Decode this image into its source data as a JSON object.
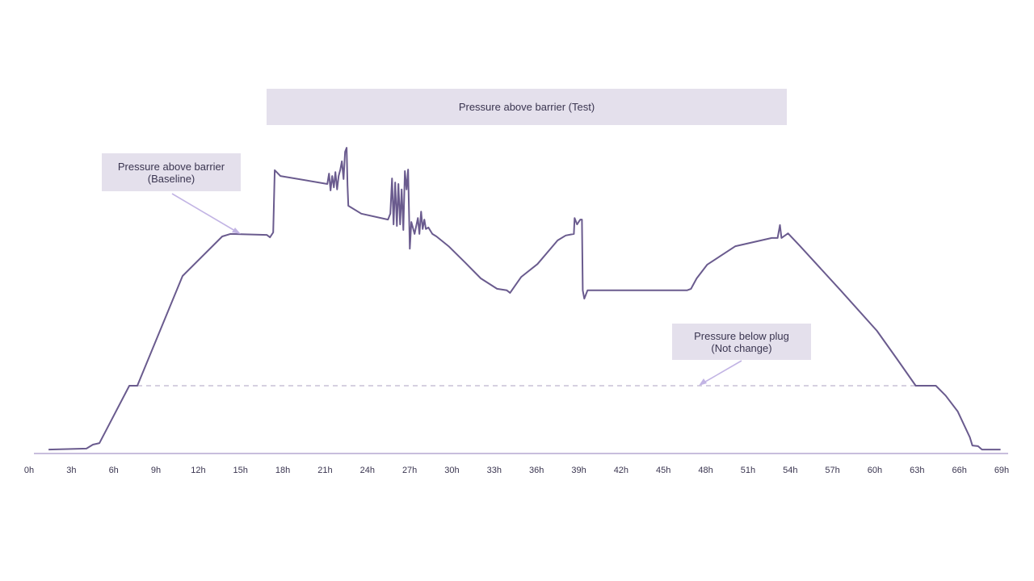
{
  "chart_data": {
    "type": "line",
    "title": "",
    "xlabel": "",
    "ylabel": "",
    "x_unit": "hours",
    "y_unit": "relative pressure (unlabeled, 0-100)",
    "xlim": [
      0,
      69
    ],
    "ylim": [
      0,
      100
    ],
    "grid": false,
    "x_ticks": [
      "0h",
      "3h",
      "6h",
      "9h",
      "12h",
      "15h",
      "18h",
      "21h",
      "24h",
      "27h",
      "30h",
      "33h",
      "36h",
      "39h",
      "42h",
      "45h",
      "48h",
      "51h",
      "54h",
      "57h",
      "60h",
      "63h",
      "66h",
      "69h"
    ],
    "x_tick_values": [
      0,
      3,
      6,
      9,
      12,
      15,
      18,
      21,
      24,
      27,
      30,
      33,
      36,
      39,
      42,
      45,
      48,
      51,
      54,
      57,
      60,
      63,
      66,
      69
    ],
    "series": [
      {
        "name": "Pressure above barrier",
        "color": "#6a5b8e",
        "points": [
          [
            1.38,
            1.3
          ],
          [
            4.07,
            1.6
          ],
          [
            4.53,
            2.9
          ],
          [
            4.99,
            3.4
          ],
          [
            7.11,
            22.1
          ],
          [
            7.68,
            22.1
          ],
          [
            10.89,
            57.9
          ],
          [
            13.7,
            70.8
          ],
          [
            14.28,
            71.6
          ],
          [
            16.86,
            71.3
          ],
          [
            17.09,
            70.5
          ],
          [
            17.32,
            72.1
          ],
          [
            17.43,
            92.4
          ],
          [
            17.83,
            90.5
          ],
          [
            21.16,
            87.9
          ],
          [
            21.28,
            91.3
          ],
          [
            21.39,
            85.8
          ],
          [
            21.5,
            90.5
          ],
          [
            21.62,
            86.8
          ],
          [
            21.73,
            91.8
          ],
          [
            21.85,
            86.1
          ],
          [
            21.96,
            90.5
          ],
          [
            22.08,
            92.6
          ],
          [
            22.19,
            95.3
          ],
          [
            22.31,
            89.5
          ],
          [
            22.42,
            98.4
          ],
          [
            22.53,
            99.7
          ],
          [
            22.59,
            87.4
          ],
          [
            22.65,
            80.8
          ],
          [
            23.57,
            78.2
          ],
          [
            25.46,
            76.3
          ],
          [
            25.63,
            78.2
          ],
          [
            25.75,
            89.7
          ],
          [
            25.86,
            74.7
          ],
          [
            25.97,
            88.4
          ],
          [
            26.09,
            74.2
          ],
          [
            26.2,
            87.9
          ],
          [
            26.32,
            74.7
          ],
          [
            26.43,
            86.1
          ],
          [
            26.55,
            72.9
          ],
          [
            26.66,
            92.1
          ],
          [
            26.78,
            86.1
          ],
          [
            26.89,
            92.6
          ],
          [
            27.01,
            66.8
          ],
          [
            27.12,
            75.5
          ],
          [
            27.35,
            71.6
          ],
          [
            27.58,
            76.8
          ],
          [
            27.69,
            71.6
          ],
          [
            27.81,
            78.9
          ],
          [
            27.92,
            73.2
          ],
          [
            28.04,
            76.3
          ],
          [
            28.15,
            73.2
          ],
          [
            28.33,
            73.7
          ],
          [
            28.61,
            71.6
          ],
          [
            28.9,
            70.8
          ],
          [
            29.76,
            67.6
          ],
          [
            30.91,
            62.4
          ],
          [
            32.05,
            57.1
          ],
          [
            33.2,
            53.7
          ],
          [
            33.89,
            53.2
          ],
          [
            34.12,
            52.4
          ],
          [
            34.92,
            57.6
          ],
          [
            36.07,
            61.8
          ],
          [
            37.5,
            69.5
          ],
          [
            38.07,
            71.1
          ],
          [
            38.65,
            71.6
          ],
          [
            38.7,
            76.8
          ],
          [
            38.88,
            74.7
          ],
          [
            38.99,
            75.5
          ],
          [
            39.11,
            76.3
          ],
          [
            39.22,
            76.3
          ],
          [
            39.28,
            53.2
          ],
          [
            39.39,
            50.5
          ],
          [
            39.62,
            53.2
          ],
          [
            46.67,
            53.2
          ],
          [
            46.96,
            53.7
          ],
          [
            47.36,
            57.1
          ],
          [
            48.11,
            61.6
          ],
          [
            50.11,
            67.6
          ],
          [
            52.69,
            70.3
          ],
          [
            53.1,
            70.3
          ],
          [
            53.27,
            74.5
          ],
          [
            53.38,
            70.3
          ],
          [
            53.84,
            71.8
          ],
          [
            54.7,
            67.6
          ],
          [
            57.57,
            53.2
          ],
          [
            60.15,
            40.0
          ],
          [
            61.58,
            30.8
          ],
          [
            62.9,
            22.1
          ],
          [
            64.33,
            22.1
          ],
          [
            65.02,
            18.9
          ],
          [
            65.88,
            13.7
          ],
          [
            66.74,
            5.3
          ],
          [
            66.92,
            2.6
          ],
          [
            67.32,
            2.4
          ],
          [
            67.6,
            1.3
          ],
          [
            68.92,
            1.3
          ]
        ]
      },
      {
        "name": "Pressure below plug",
        "color": "#c8c0d6",
        "style": "dashed",
        "points": [
          [
            7.68,
            22.1
          ],
          [
            62.9,
            22.1
          ]
        ]
      }
    ],
    "annotations": {
      "test": "Pressure above barrier (Test)",
      "baseline_line1": "Pressure above barrier",
      "baseline_line2": "(Baseline)",
      "plug_line1": "Pressure below plug",
      "plug_line2": "(Not change)"
    },
    "colors": {
      "axis": "#c8bedd",
      "box": "#e4e0ec",
      "arrow": "#c2b4e4"
    }
  }
}
